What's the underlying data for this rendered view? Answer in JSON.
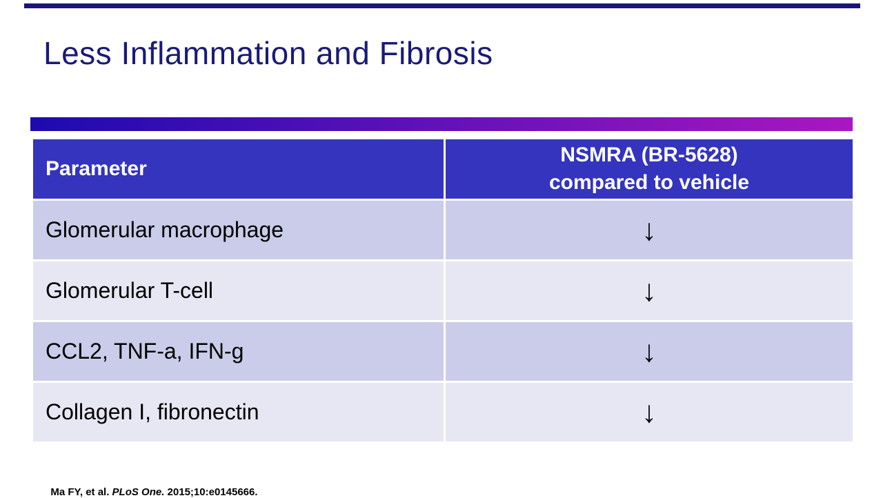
{
  "slide": {
    "title": "Less Inflammation and Fibrosis"
  },
  "table": {
    "header": {
      "parameter_label": "Parameter",
      "comparison_line1": "NSMRA (BR-5628)",
      "comparison_line2": "compared to vehicle"
    },
    "rows": [
      {
        "parameter": "Glomerular macrophage",
        "change": "↓"
      },
      {
        "parameter": "Glomerular T-cell",
        "change": "↓"
      },
      {
        "parameter": "CCL2, TNF-a, IFN-g",
        "change": "↓"
      },
      {
        "parameter": "Collagen I, fibronectin",
        "change": "↓"
      }
    ]
  },
  "citation": {
    "prefix": "Ma FY, et al.",
    "journal": " PLoS One.",
    "suffix": " 2015;10:e0145666."
  },
  "colors": {
    "title-color": "#1a1a78",
    "top-bar-color": "#1b1577",
    "gradient-start": "#1c0bb0",
    "gradient-end": "#a917c1",
    "header-bg": "#3434bf",
    "header-text": "#ffffff",
    "row-dark": "#cbcce9",
    "row-light": "#e7e7f4",
    "body-text": "#000000"
  }
}
